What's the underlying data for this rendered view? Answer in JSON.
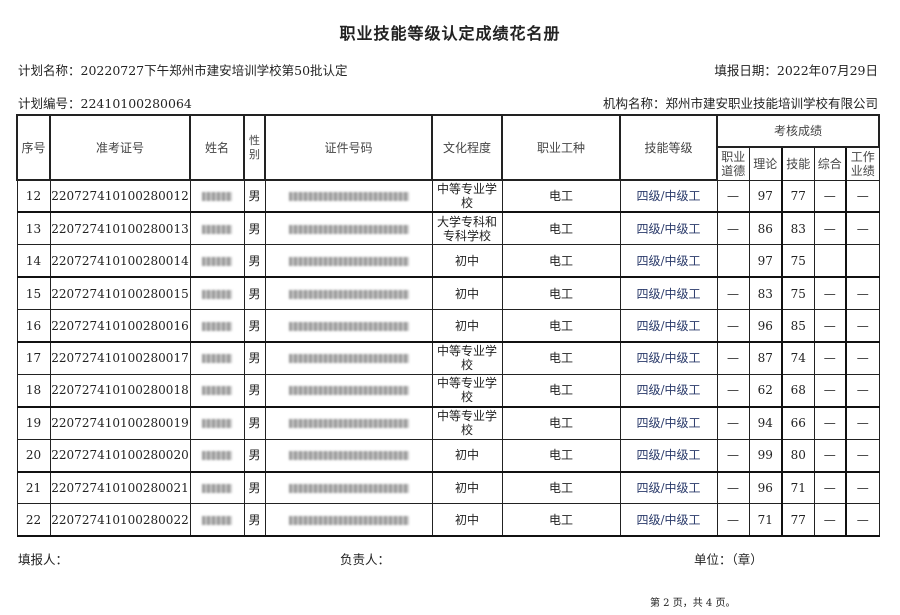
{
  "title": "职业技能等级认定成绩花名册",
  "plan_name_label": "计划名称：",
  "plan_name": "20220727下午郑州市建安培训学校第50批认定",
  "report_date_label": "填报日期：",
  "report_date": "2022年07月29日",
  "plan_no_label": "计划编号：",
  "plan_no": "22410100280064",
  "org_label": "机构名称：",
  "org_name": "郑州市建安职业技能培训学校有限公司",
  "headers": {
    "seq": "序号",
    "exam_no": "准考证号",
    "name": "姓名",
    "gender": "性别",
    "id_no": "证件号码",
    "education": "文化程度",
    "occupation": "职业工种",
    "level": "技能等级",
    "scores": "考核成绩",
    "ethics": "职业道德",
    "theory": "理论",
    "skill": "技能",
    "overall": "综合",
    "performance": "工作业绩"
  },
  "rows": [
    {
      "seq": "12",
      "exam_no": "220727410100280012",
      "gender": "男",
      "education": "中等专业学校",
      "occupation": "电工",
      "level": "四级/中级工",
      "ethics": "—",
      "theory": "97",
      "skill": "77",
      "overall": "—",
      "performance": "—"
    },
    {
      "seq": "13",
      "exam_no": "220727410100280013",
      "gender": "男",
      "education": "大学专科和专科学校",
      "occupation": "电工",
      "level": "四级/中级工",
      "ethics": "—",
      "theory": "86",
      "skill": "83",
      "overall": "—",
      "performance": "—"
    },
    {
      "seq": "14",
      "exam_no": "220727410100280014",
      "gender": "男",
      "education": "初中",
      "occupation": "电工",
      "level": "四级/中级工",
      "ethics": "",
      "theory": "97",
      "skill": "75",
      "overall": "",
      "performance": ""
    },
    {
      "seq": "15",
      "exam_no": "220727410100280015",
      "gender": "男",
      "education": "初中",
      "occupation": "电工",
      "level": "四级/中级工",
      "ethics": "—",
      "theory": "83",
      "skill": "75",
      "overall": "—",
      "performance": "—"
    },
    {
      "seq": "16",
      "exam_no": "220727410100280016",
      "gender": "男",
      "education": "初中",
      "occupation": "电工",
      "level": "四级/中级工",
      "ethics": "—",
      "theory": "96",
      "skill": "85",
      "overall": "—",
      "performance": "—"
    },
    {
      "seq": "17",
      "exam_no": "220727410100280017",
      "gender": "男",
      "education": "中等专业学校",
      "occupation": "电工",
      "level": "四级/中级工",
      "ethics": "—",
      "theory": "87",
      "skill": "74",
      "overall": "—",
      "performance": "—"
    },
    {
      "seq": "18",
      "exam_no": "220727410100280018",
      "gender": "男",
      "education": "中等专业学校",
      "occupation": "电工",
      "level": "四级/中级工",
      "ethics": "—",
      "theory": "62",
      "skill": "68",
      "overall": "—",
      "performance": "—"
    },
    {
      "seq": "19",
      "exam_no": "220727410100280019",
      "gender": "男",
      "education": "中等专业学校",
      "occupation": "电工",
      "level": "四级/中级工",
      "ethics": "—",
      "theory": "94",
      "skill": "66",
      "overall": "—",
      "performance": "—"
    },
    {
      "seq": "20",
      "exam_no": "220727410100280020",
      "gender": "男",
      "education": "初中",
      "occupation": "电工",
      "level": "四级/中级工",
      "ethics": "—",
      "theory": "99",
      "skill": "80",
      "overall": "—",
      "performance": "—"
    },
    {
      "seq": "21",
      "exam_no": "220727410100280021",
      "gender": "男",
      "education": "初中",
      "occupation": "电工",
      "level": "四级/中级工",
      "ethics": "—",
      "theory": "96",
      "skill": "71",
      "overall": "—",
      "performance": "—"
    },
    {
      "seq": "22",
      "exam_no": "220727410100280022",
      "gender": "男",
      "education": "初中",
      "occupation": "电工",
      "level": "四级/中级工",
      "ethics": "—",
      "theory": "71",
      "skill": "77",
      "overall": "—",
      "performance": "—"
    }
  ],
  "footer": {
    "reporter": "填报人：",
    "supervisor": "负责人：",
    "unit": "单位：（章）",
    "page": "第 2 页，共 4 页。"
  }
}
